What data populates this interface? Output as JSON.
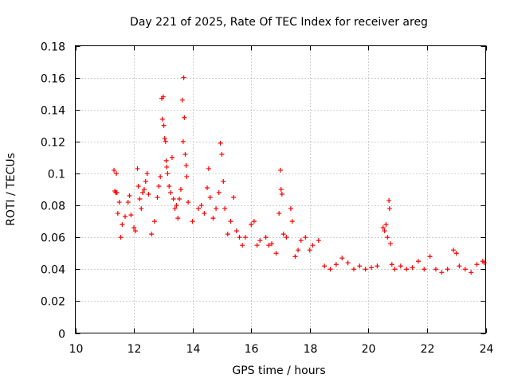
{
  "chart_data": {
    "type": "scatter",
    "title": "Day 221 of 2025, Rate Of TEC Index for receiver areg",
    "xlabel": "GPS time / hours",
    "ylabel": "ROTI / TECUs",
    "xlim": [
      10,
      24
    ],
    "ylim": [
      0,
      0.18
    ],
    "x_ticks": [
      10,
      12,
      14,
      16,
      18,
      20,
      22,
      24
    ],
    "y_ticks": [
      0,
      0.02,
      0.04,
      0.06,
      0.08,
      0.1,
      0.12,
      0.14,
      0.16,
      0.18
    ],
    "x_tick_labels": [
      "10",
      "12",
      "14",
      "16",
      "18",
      "20",
      "22",
      "24"
    ],
    "y_tick_labels": [
      "0",
      "0.02",
      "0.04",
      "0.06",
      "0.08",
      "0.1",
      "0.12",
      "0.14",
      "0.16",
      "0.18"
    ],
    "grid": true,
    "marker": "+",
    "color": "#ff0000",
    "series": [
      {
        "name": "ROTI",
        "points": [
          [
            11.32,
            0.102
          ],
          [
            11.35,
            0.089
          ],
          [
            11.38,
            0.088
          ],
          [
            11.4,
            0.1
          ],
          [
            11.42,
            0.088
          ],
          [
            11.45,
            0.075
          ],
          [
            11.5,
            0.082
          ],
          [
            11.55,
            0.06
          ],
          [
            11.6,
            0.068
          ],
          [
            11.7,
            0.073
          ],
          [
            11.8,
            0.082
          ],
          [
            11.85,
            0.086
          ],
          [
            11.9,
            0.074
          ],
          [
            12.0,
            0.066
          ],
          [
            12.05,
            0.064
          ],
          [
            12.12,
            0.103
          ],
          [
            12.15,
            0.092
          ],
          [
            12.2,
            0.084
          ],
          [
            12.25,
            0.078
          ],
          [
            12.3,
            0.088
          ],
          [
            12.35,
            0.09
          ],
          [
            12.4,
            0.095
          ],
          [
            12.45,
            0.1
          ],
          [
            12.5,
            0.087
          ],
          [
            12.6,
            0.062
          ],
          [
            12.7,
            0.07
          ],
          [
            12.8,
            0.085
          ],
          [
            12.85,
            0.092
          ],
          [
            12.9,
            0.098
          ],
          [
            12.95,
            0.147
          ],
          [
            12.97,
            0.134
          ],
          [
            13.0,
            0.148
          ],
          [
            13.02,
            0.13
          ],
          [
            13.05,
            0.122
          ],
          [
            13.08,
            0.12
          ],
          [
            13.1,
            0.108
          ],
          [
            13.12,
            0.104
          ],
          [
            13.15,
            0.1
          ],
          [
            13.2,
            0.092
          ],
          [
            13.25,
            0.088
          ],
          [
            13.3,
            0.11
          ],
          [
            13.35,
            0.084
          ],
          [
            13.4,
            0.078
          ],
          [
            13.45,
            0.08
          ],
          [
            13.5,
            0.072
          ],
          [
            13.55,
            0.084
          ],
          [
            13.6,
            0.09
          ],
          [
            13.65,
            0.146
          ],
          [
            13.68,
            0.12
          ],
          [
            13.7,
            0.16
          ],
          [
            13.72,
            0.135
          ],
          [
            13.75,
            0.112
          ],
          [
            13.78,
            0.105
          ],
          [
            13.8,
            0.098
          ],
          [
            13.85,
            0.082
          ],
          [
            14.0,
            0.07
          ],
          [
            14.2,
            0.078
          ],
          [
            14.3,
            0.08
          ],
          [
            14.4,
            0.075
          ],
          [
            14.5,
            0.091
          ],
          [
            14.55,
            0.103
          ],
          [
            14.6,
            0.085
          ],
          [
            14.7,
            0.072
          ],
          [
            14.8,
            0.078
          ],
          [
            14.9,
            0.088
          ],
          [
            14.95,
            0.119
          ],
          [
            15.0,
            0.112
          ],
          [
            15.05,
            0.095
          ],
          [
            15.1,
            0.078
          ],
          [
            15.2,
            0.062
          ],
          [
            15.3,
            0.07
          ],
          [
            15.4,
            0.085
          ],
          [
            15.5,
            0.064
          ],
          [
            15.6,
            0.06
          ],
          [
            15.7,
            0.055
          ],
          [
            15.8,
            0.06
          ],
          [
            16.0,
            0.068
          ],
          [
            16.1,
            0.07
          ],
          [
            16.2,
            0.055
          ],
          [
            16.3,
            0.058
          ],
          [
            16.5,
            0.06
          ],
          [
            16.6,
            0.055
          ],
          [
            16.7,
            0.056
          ],
          [
            16.85,
            0.05
          ],
          [
            16.95,
            0.075
          ],
          [
            17.0,
            0.102
          ],
          [
            17.02,
            0.09
          ],
          [
            17.05,
            0.087
          ],
          [
            17.1,
            0.062
          ],
          [
            17.2,
            0.06
          ],
          [
            17.35,
            0.078
          ],
          [
            17.4,
            0.07
          ],
          [
            17.5,
            0.048
          ],
          [
            17.6,
            0.052
          ],
          [
            17.7,
            0.058
          ],
          [
            17.85,
            0.06
          ],
          [
            18.0,
            0.052
          ],
          [
            18.1,
            0.055
          ],
          [
            18.3,
            0.058
          ],
          [
            18.5,
            0.042
          ],
          [
            18.7,
            0.04
          ],
          [
            18.9,
            0.043
          ],
          [
            19.1,
            0.047
          ],
          [
            19.3,
            0.044
          ],
          [
            19.5,
            0.04
          ],
          [
            19.7,
            0.042
          ],
          [
            19.9,
            0.04
          ],
          [
            20.1,
            0.041
          ],
          [
            20.3,
            0.042
          ],
          [
            20.5,
            0.066
          ],
          [
            20.55,
            0.064
          ],
          [
            20.6,
            0.068
          ],
          [
            20.65,
            0.06
          ],
          [
            20.7,
            0.083
          ],
          [
            20.72,
            0.078
          ],
          [
            20.75,
            0.056
          ],
          [
            20.8,
            0.043
          ],
          [
            20.9,
            0.04
          ],
          [
            21.1,
            0.042
          ],
          [
            21.3,
            0.04
          ],
          [
            21.5,
            0.041
          ],
          [
            21.7,
            0.045
          ],
          [
            21.9,
            0.04
          ],
          [
            22.1,
            0.048
          ],
          [
            22.3,
            0.04
          ],
          [
            22.5,
            0.038
          ],
          [
            22.7,
            0.04
          ],
          [
            22.9,
            0.052
          ],
          [
            23.0,
            0.05
          ],
          [
            23.1,
            0.042
          ],
          [
            23.3,
            0.04
          ],
          [
            23.5,
            0.038
          ],
          [
            23.7,
            0.043
          ],
          [
            23.9,
            0.045
          ],
          [
            23.95,
            0.044
          ]
        ]
      }
    ]
  }
}
